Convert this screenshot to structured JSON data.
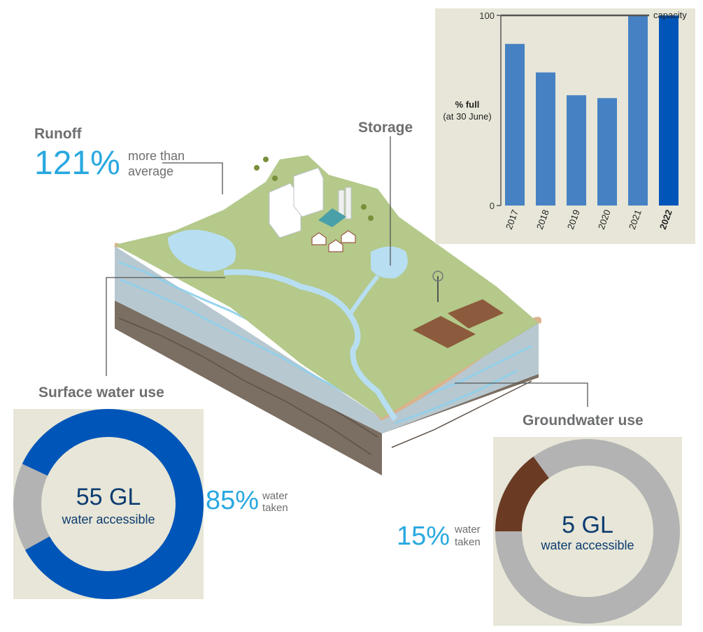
{
  "runoff": {
    "title": "Runoff",
    "percent": "121%",
    "desc_line1": "more than",
    "desc_line2": "average"
  },
  "storage": {
    "title": "Storage"
  },
  "surface_water": {
    "title": "Surface water use",
    "volume": "55 GL",
    "volume_label": "water accessible",
    "percent": "85%",
    "taken_line1": "water",
    "taken_line2": "taken",
    "taken_fraction": 0.85,
    "taken_color": "#0055b8",
    "remaining_color": "#b3b3b3"
  },
  "groundwater": {
    "title": "Groundwater use",
    "volume": "5 GL",
    "volume_label": "water accessible",
    "percent": "15%",
    "taken_line1": "water",
    "taken_line2": "taken",
    "taken_fraction": 0.15,
    "taken_color": "#6b3a23",
    "remaining_color": "#b3b3b3"
  },
  "chart_data": {
    "type": "bar",
    "ylabel_line1": "% full",
    "ylabel_line2": "(at 30 June)",
    "ylim": [
      0,
      100
    ],
    "yticks": [
      "0",
      "100"
    ],
    "categories": [
      "2017",
      "2018",
      "2019",
      "2020",
      "2021",
      "2022"
    ],
    "values": [
      85,
      70,
      58,
      56.5,
      100,
      100
    ],
    "highlight_category": "2022",
    "bar_color": "#4682c3",
    "highlight_color": "#0055b8",
    "reference_line_value": 100,
    "reference_line_label": "capacity"
  }
}
